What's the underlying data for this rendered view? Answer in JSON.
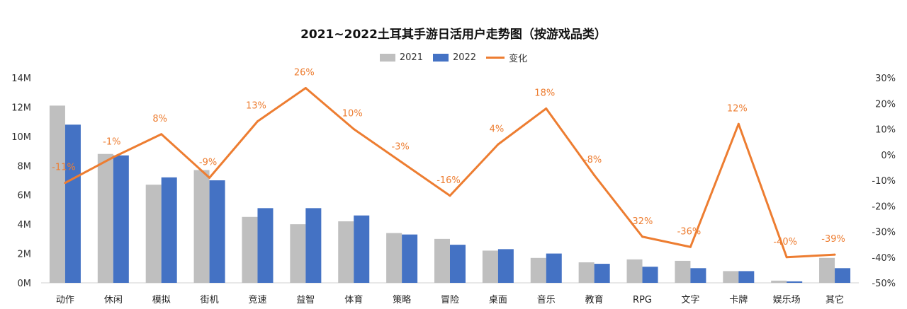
{
  "chart_data": {
    "type": "bar",
    "title": "2021~2022土耳其手游日活用户走势图（按游戏品类）",
    "categories": [
      "动作",
      "休闲",
      "模拟",
      "街机",
      "竞速",
      "益智",
      "体育",
      "策略",
      "冒险",
      "桌面",
      "音乐",
      "教育",
      "RPG",
      "文字",
      "卡牌",
      "娱乐场",
      "其它"
    ],
    "series": [
      {
        "name": "2021",
        "type": "bar",
        "axis": "left",
        "color": "#BFBFBF",
        "values": [
          12.1,
          8.8,
          6.7,
          7.7,
          4.5,
          4.0,
          4.2,
          3.4,
          3.0,
          2.2,
          1.7,
          1.4,
          1.6,
          1.5,
          0.8,
          0.15,
          1.7
        ]
      },
      {
        "name": "2022",
        "type": "bar",
        "axis": "left",
        "color": "#4472C4",
        "values": [
          10.8,
          8.7,
          7.2,
          7.0,
          5.1,
          5.1,
          4.6,
          3.3,
          2.6,
          2.3,
          2.0,
          1.3,
          1.1,
          1.0,
          0.8,
          0.1,
          1.0
        ]
      },
      {
        "name": "变化",
        "type": "line",
        "axis": "right",
        "color": "#ED7D31",
        "values": [
          -11,
          -1,
          8,
          -9,
          13,
          26,
          10,
          -3,
          -16,
          4,
          18,
          -8,
          -32,
          -36,
          12,
          -40,
          -39
        ],
        "labels": [
          "-11%",
          "-1%",
          "8%",
          "-9%",
          "13%",
          "26%",
          "10%",
          "-3%",
          "-16%",
          "4%",
          "18%",
          "-8%",
          "-32%",
          "-36%",
          "12%",
          "-40%",
          "-39%"
        ]
      }
    ],
    "y_left": {
      "min": 0,
      "max": 14,
      "ticks": [
        0,
        2,
        4,
        6,
        8,
        10,
        12,
        14
      ],
      "tick_labels": [
        "0M",
        "2M",
        "4M",
        "6M",
        "8M",
        "10M",
        "12M",
        "14M"
      ]
    },
    "y_right": {
      "min": -50,
      "max": 30,
      "ticks": [
        -50,
        -40,
        -30,
        -20,
        -10,
        0,
        10,
        20,
        30
      ],
      "tick_labels": [
        "-50%",
        "-40%",
        "-30%",
        "-20%",
        "-10%",
        "0%",
        "10%",
        "20%",
        "30%"
      ]
    },
    "grid": false,
    "legend_position": "top-center"
  }
}
